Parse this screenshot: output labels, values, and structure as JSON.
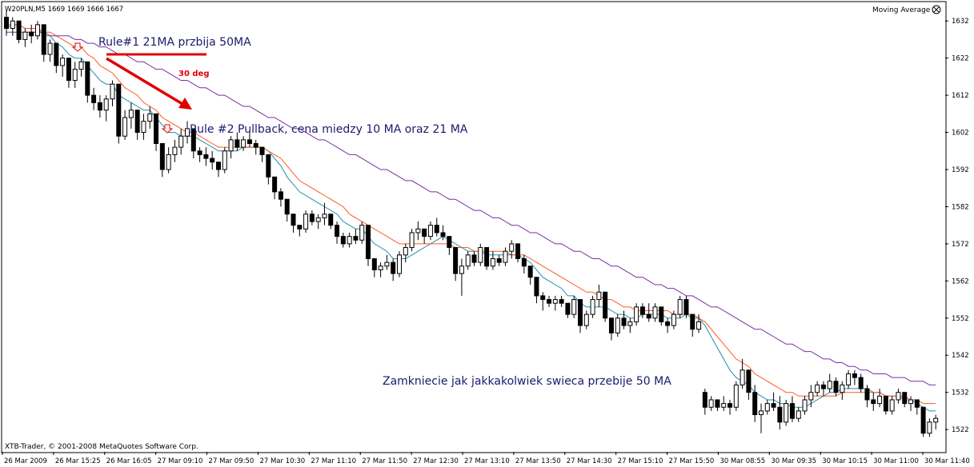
{
  "header": {
    "symbol_info": "W20PLN,M5  1669 1669 1666 1667",
    "indicator_label": "Moving Average",
    "close_icon": "circle-x-icon"
  },
  "footer": {
    "copyright": "XTB-Trader, © 2001-2008 MetaQuotes Software Corp."
  },
  "annotations": {
    "rule1": "Rule#1 21MA przbija 50MA",
    "angle": "30 deg",
    "rule2": "Rule #2 Pullback, cena miedzy 10 MA oraz 21 MA",
    "exit": "Zamkniecie jak jakkakolwiek swieca przebije 50 MA"
  },
  "colors": {
    "annotation_text": "#1a1a6e",
    "annotation_red": "#e00000",
    "ma10": "#1f8fa8",
    "ma21": "#ff5a1f",
    "ma50": "#7a2fa0",
    "candle_down": "#000000",
    "candle_up": "#ffffff",
    "marker_arrow": "#e00000"
  },
  "chart_data": {
    "type": "candlestick",
    "ylim": [
      1516,
      1637
    ],
    "y_ticks": [
      1632,
      1622,
      1612,
      1602,
      1592,
      1582,
      1572,
      1562,
      1552,
      1542,
      1532,
      1522
    ],
    "x_labels": [
      "26 Mar 2009",
      "26 Mar 15:25",
      "26 Mar 16:05",
      "27 Mar 09:10",
      "27 Mar 09:50",
      "27 Mar 10:30",
      "27 Mar 11:10",
      "27 Mar 11:50",
      "27 Mar 12:30",
      "27 Mar 13:10",
      "27 Mar 13:50",
      "27 Mar 14:30",
      "27 Mar 15:10",
      "27 Mar 15:50",
      "30 Mar 08:55",
      "30 Mar 09:35",
      "30 Mar 10:15",
      "30 Mar 11:00",
      "30 Mar 11:40"
    ],
    "candles": [
      [
        1633,
        1635,
        1628,
        1630
      ],
      [
        1630,
        1633,
        1628,
        1632
      ],
      [
        1632,
        1632,
        1626,
        1627
      ],
      [
        1627,
        1630,
        1625,
        1629
      ],
      [
        1629,
        1631,
        1626,
        1628
      ],
      [
        1628,
        1632,
        1627,
        1631
      ],
      [
        1631,
        1631,
        1621,
        1623
      ],
      [
        1623,
        1627,
        1621,
        1626
      ],
      [
        1626,
        1626,
        1618,
        1620
      ],
      [
        1620,
        1623,
        1617,
        1622
      ],
      [
        1622,
        1622,
        1614,
        1616
      ],
      [
        1616,
        1621,
        1614,
        1619
      ],
      [
        1619,
        1622,
        1617,
        1621
      ],
      [
        1621,
        1621,
        1610,
        1612
      ],
      [
        1612,
        1614,
        1608,
        1610
      ],
      [
        1610,
        1612,
        1606,
        1608
      ],
      [
        1608,
        1612,
        1605,
        1611
      ],
      [
        1611,
        1616,
        1609,
        1615
      ],
      [
        1615,
        1615,
        1599,
        1601
      ],
      [
        1601,
        1608,
        1600,
        1606
      ],
      [
        1606,
        1610,
        1603,
        1608
      ],
      [
        1608,
        1608,
        1600,
        1602
      ],
      [
        1602,
        1607,
        1600,
        1605
      ],
      [
        1605,
        1609,
        1603,
        1607
      ],
      [
        1607,
        1607,
        1597,
        1599
      ],
      [
        1599,
        1599,
        1590,
        1592
      ],
      [
        1592,
        1598,
        1591,
        1596
      ],
      [
        1596,
        1600,
        1594,
        1598
      ],
      [
        1598,
        1603,
        1596,
        1601
      ],
      [
        1601,
        1605,
        1599,
        1603
      ],
      [
        1603,
        1603,
        1595,
        1597
      ],
      [
        1597,
        1598,
        1594,
        1596
      ],
      [
        1596,
        1598,
        1593,
        1595
      ],
      [
        1595,
        1597,
        1592,
        1594
      ],
      [
        1594,
        1594,
        1590,
        1592
      ],
      [
        1592,
        1598,
        1591,
        1597
      ],
      [
        1597,
        1601,
        1595,
        1600
      ],
      [
        1600,
        1602,
        1597,
        1598
      ],
      [
        1598,
        1601,
        1597,
        1600
      ],
      [
        1600,
        1602,
        1598,
        1599
      ],
      [
        1599,
        1600,
        1596,
        1598
      ],
      [
        1598,
        1598,
        1594,
        1596
      ],
      [
        1596,
        1596,
        1588,
        1590
      ],
      [
        1590,
        1590,
        1584,
        1586
      ],
      [
        1586,
        1587,
        1582,
        1584
      ],
      [
        1584,
        1584,
        1578,
        1580
      ],
      [
        1580,
        1580,
        1575,
        1577
      ],
      [
        1577,
        1577,
        1574,
        1576
      ],
      [
        1576,
        1581,
        1575,
        1580
      ],
      [
        1580,
        1581,
        1577,
        1578
      ],
      [
        1578,
        1580,
        1576,
        1579
      ],
      [
        1579,
        1583,
        1577,
        1580
      ],
      [
        1580,
        1580,
        1576,
        1577
      ],
      [
        1577,
        1578,
        1572,
        1574
      ],
      [
        1574,
        1575,
        1571,
        1572
      ],
      [
        1572,
        1575,
        1571,
        1574
      ],
      [
        1574,
        1576,
        1572,
        1573
      ],
      [
        1573,
        1578,
        1572,
        1577
      ],
      [
        1577,
        1577,
        1566,
        1568
      ],
      [
        1568,
        1568,
        1563,
        1565
      ],
      [
        1565,
        1567,
        1563,
        1566
      ],
      [
        1566,
        1569,
        1565,
        1567
      ],
      [
        1567,
        1568,
        1562,
        1564
      ],
      [
        1564,
        1570,
        1563,
        1569
      ],
      [
        1569,
        1572,
        1567,
        1571
      ],
      [
        1571,
        1576,
        1570,
        1575
      ],
      [
        1575,
        1578,
        1573,
        1576
      ],
      [
        1576,
        1576,
        1572,
        1574
      ],
      [
        1574,
        1578,
        1573,
        1577
      ],
      [
        1577,
        1579,
        1574,
        1575
      ],
      [
        1575,
        1577,
        1573,
        1574
      ],
      [
        1574,
        1574,
        1569,
        1571
      ],
      [
        1571,
        1571,
        1562,
        1564
      ],
      [
        1564,
        1568,
        1558,
        1566
      ],
      [
        1566,
        1570,
        1565,
        1569
      ],
      [
        1569,
        1570,
        1566,
        1567
      ],
      [
        1567,
        1572,
        1566,
        1571
      ],
      [
        1571,
        1571,
        1565,
        1566
      ],
      [
        1566,
        1570,
        1565,
        1568
      ],
      [
        1568,
        1569,
        1566,
        1567
      ],
      [
        1567,
        1571,
        1566,
        1570
      ],
      [
        1570,
        1573,
        1568,
        1572
      ],
      [
        1572,
        1572,
        1567,
        1568
      ],
      [
        1568,
        1569,
        1564,
        1566
      ],
      [
        1566,
        1566,
        1561,
        1563
      ],
      [
        1563,
        1563,
        1556,
        1558
      ],
      [
        1558,
        1559,
        1554,
        1557
      ],
      [
        1557,
        1558,
        1555,
        1556
      ],
      [
        1556,
        1558,
        1554,
        1557
      ],
      [
        1557,
        1558,
        1555,
        1556
      ],
      [
        1556,
        1556,
        1552,
        1553
      ],
      [
        1553,
        1558,
        1552,
        1557
      ],
      [
        1557,
        1557,
        1548,
        1550
      ],
      [
        1550,
        1554,
        1549,
        1553
      ],
      [
        1553,
        1558,
        1552,
        1557
      ],
      [
        1557,
        1561,
        1555,
        1559
      ],
      [
        1559,
        1559,
        1551,
        1552
      ],
      [
        1552,
        1552,
        1546,
        1548
      ],
      [
        1548,
        1553,
        1547,
        1552
      ],
      [
        1552,
        1554,
        1549,
        1550
      ],
      [
        1550,
        1552,
        1548,
        1551
      ],
      [
        1551,
        1556,
        1550,
        1555
      ],
      [
        1555,
        1556,
        1552,
        1553
      ],
      [
        1553,
        1556,
        1551,
        1552
      ],
      [
        1552,
        1556,
        1551,
        1555
      ],
      [
        1555,
        1555,
        1550,
        1551
      ],
      [
        1551,
        1552,
        1548,
        1550
      ],
      [
        1550,
        1554,
        1549,
        1553
      ],
      [
        1553,
        1558,
        1552,
        1557
      ],
      [
        1557,
        1558,
        1552,
        1553
      ],
      [
        1553,
        1553,
        1547,
        1549
      ],
      [
        1549,
        1553,
        1548,
        1551
      ],
      [
        1532,
        1533,
        1526,
        1528
      ],
      [
        1528,
        1531,
        1527,
        1530
      ],
      [
        1530,
        1530,
        1527,
        1528
      ],
      [
        1528,
        1531,
        1527,
        1529
      ],
      [
        1529,
        1530,
        1526,
        1528
      ],
      [
        1528,
        1535,
        1527,
        1534
      ],
      [
        1534,
        1541,
        1533,
        1538
      ],
      [
        1538,
        1538,
        1530,
        1532
      ],
      [
        1532,
        1534,
        1524,
        1526
      ],
      [
        1526,
        1529,
        1521,
        1527
      ],
      [
        1527,
        1530,
        1526,
        1529
      ],
      [
        1529,
        1532,
        1527,
        1528
      ],
      [
        1528,
        1531,
        1522,
        1524
      ],
      [
        1524,
        1530,
        1523,
        1529
      ],
      [
        1529,
        1531,
        1524,
        1525
      ],
      [
        1525,
        1528,
        1524,
        1527
      ],
      [
        1527,
        1531,
        1526,
        1530
      ],
      [
        1530,
        1534,
        1528,
        1532
      ],
      [
        1532,
        1535,
        1531,
        1534
      ],
      [
        1534,
        1535,
        1531,
        1533
      ],
      [
        1533,
        1537,
        1532,
        1535
      ],
      [
        1535,
        1536,
        1531,
        1532
      ],
      [
        1532,
        1535,
        1530,
        1534
      ],
      [
        1534,
        1538,
        1533,
        1537
      ],
      [
        1537,
        1538,
        1534,
        1536
      ],
      [
        1536,
        1537,
        1532,
        1533
      ],
      [
        1533,
        1534,
        1528,
        1530
      ],
      [
        1530,
        1532,
        1527,
        1529
      ],
      [
        1529,
        1533,
        1528,
        1531
      ],
      [
        1531,
        1531,
        1526,
        1527
      ],
      [
        1527,
        1531,
        1526,
        1530
      ],
      [
        1530,
        1533,
        1529,
        1532
      ],
      [
        1532,
        1532,
        1528,
        1529
      ],
      [
        1529,
        1531,
        1527,
        1530
      ],
      [
        1530,
        1530,
        1526,
        1528
      ],
      [
        1528,
        1528,
        1520,
        1521
      ],
      [
        1521,
        1525,
        1520,
        1524
      ],
      [
        1524,
        1526,
        1522,
        1525
      ]
    ],
    "series": [
      {
        "type": "line",
        "values": [
          1630,
          1631,
          1631,
          1630,
          1630,
          1630,
          1628,
          1628,
          1626,
          1625,
          1623,
          1622,
          1622,
          1620,
          1618,
          1616,
          1615,
          1615,
          1612,
          1611,
          1610,
          1609,
          1608,
          1608,
          1606,
          1604,
          1602,
          1602,
          1601,
          1601,
          1601,
          1600,
          1599,
          1598,
          1597,
          1597,
          1597,
          1597,
          1598,
          1598,
          1598,
          1598,
          1597,
          1595,
          1593,
          1590,
          1588,
          1586,
          1585,
          1584,
          1583,
          1582,
          1581,
          1580,
          1578,
          1577,
          1576,
          1576,
          1574,
          1572,
          1571,
          1570,
          1568,
          1568,
          1568,
          1569,
          1570,
          1571,
          1572,
          1573,
          1574,
          1573,
          1572,
          1571,
          1570,
          1570,
          1570,
          1569,
          1569,
          1569,
          1569,
          1569,
          1569,
          1568,
          1567,
          1565,
          1563,
          1562,
          1561,
          1560,
          1558,
          1558,
          1556,
          1555,
          1555,
          1555,
          1555,
          1554,
          1553,
          1553,
          1552,
          1552,
          1553,
          1553,
          1553,
          1553,
          1552,
          1552,
          1552,
          1553,
          1552,
          1552,
          1550,
          1547,
          1544,
          1541,
          1538,
          1536,
          1535,
          1534,
          1532,
          1531,
          1530,
          1530,
          1529,
          1529,
          1528,
          1528,
          1528,
          1529,
          1530,
          1531,
          1532,
          1532,
          1533,
          1533,
          1533,
          1533,
          1533,
          1532,
          1532,
          1531,
          1531,
          1531,
          1530,
          1530,
          1529,
          1528,
          1527,
          1527
        ]
      },
      {
        "type": "line",
        "values": [
          1631,
          1631,
          1631,
          1630,
          1630,
          1630,
          1629,
          1629,
          1628,
          1627,
          1626,
          1625,
          1625,
          1623,
          1622,
          1620,
          1619,
          1618,
          1616,
          1614,
          1613,
          1612,
          1610,
          1609,
          1608,
          1606,
          1605,
          1604,
          1603,
          1602,
          1602,
          1601,
          1600,
          1599,
          1598,
          1598,
          1598,
          1598,
          1598,
          1598,
          1598,
          1598,
          1597,
          1596,
          1595,
          1593,
          1591,
          1589,
          1588,
          1587,
          1586,
          1585,
          1584,
          1583,
          1582,
          1580,
          1579,
          1578,
          1577,
          1576,
          1575,
          1574,
          1573,
          1572,
          1572,
          1572,
          1572,
          1572,
          1572,
          1572,
          1572,
          1572,
          1571,
          1571,
          1571,
          1570,
          1570,
          1570,
          1570,
          1570,
          1570,
          1569,
          1569,
          1569,
          1568,
          1567,
          1566,
          1565,
          1564,
          1563,
          1562,
          1561,
          1560,
          1559,
          1559,
          1558,
          1557,
          1557,
          1556,
          1555,
          1555,
          1554,
          1554,
          1554,
          1554,
          1554,
          1554,
          1553,
          1553,
          1553,
          1553,
          1552,
          1551,
          1549,
          1547,
          1545,
          1543,
          1541,
          1540,
          1539,
          1537,
          1536,
          1535,
          1534,
          1533,
          1532,
          1532,
          1531,
          1531,
          1531,
          1531,
          1531,
          1531,
          1531,
          1532,
          1532,
          1532,
          1532,
          1532,
          1532,
          1532,
          1531,
          1531,
          1531,
          1531,
          1530,
          1530,
          1529,
          1529,
          1529
        ]
      },
      {
        "type": "line",
        "values": [
          1629,
          1629,
          1629,
          1629,
          1629,
          1629,
          1629,
          1628,
          1628,
          1628,
          1628,
          1627,
          1627,
          1626,
          1626,
          1625,
          1625,
          1624,
          1623,
          1623,
          1622,
          1621,
          1621,
          1620,
          1619,
          1619,
          1618,
          1617,
          1616,
          1616,
          1615,
          1614,
          1614,
          1613,
          1612,
          1612,
          1611,
          1610,
          1609,
          1609,
          1608,
          1607,
          1606,
          1606,
          1605,
          1604,
          1603,
          1603,
          1602,
          1601,
          1600,
          1600,
          1599,
          1598,
          1597,
          1596,
          1596,
          1595,
          1594,
          1593,
          1592,
          1592,
          1591,
          1590,
          1589,
          1589,
          1588,
          1587,
          1586,
          1586,
          1585,
          1584,
          1584,
          1583,
          1582,
          1581,
          1581,
          1580,
          1579,
          1579,
          1578,
          1577,
          1577,
          1576,
          1575,
          1575,
          1574,
          1573,
          1572,
          1572,
          1571,
          1570,
          1570,
          1569,
          1568,
          1568,
          1567,
          1566,
          1566,
          1565,
          1564,
          1563,
          1563,
          1562,
          1561,
          1561,
          1560,
          1560,
          1559,
          1558,
          1558,
          1557,
          1556,
          1555,
          1555,
          1554,
          1553,
          1552,
          1551,
          1550,
          1549,
          1549,
          1548,
          1547,
          1546,
          1545,
          1545,
          1544,
          1543,
          1543,
          1542,
          1541,
          1541,
          1540,
          1540,
          1539,
          1539,
          1538,
          1538,
          1537,
          1537,
          1537,
          1536,
          1536,
          1536,
          1535,
          1535,
          1535,
          1534,
          1534
        ]
      }
    ],
    "grid": false,
    "legend": "none"
  }
}
